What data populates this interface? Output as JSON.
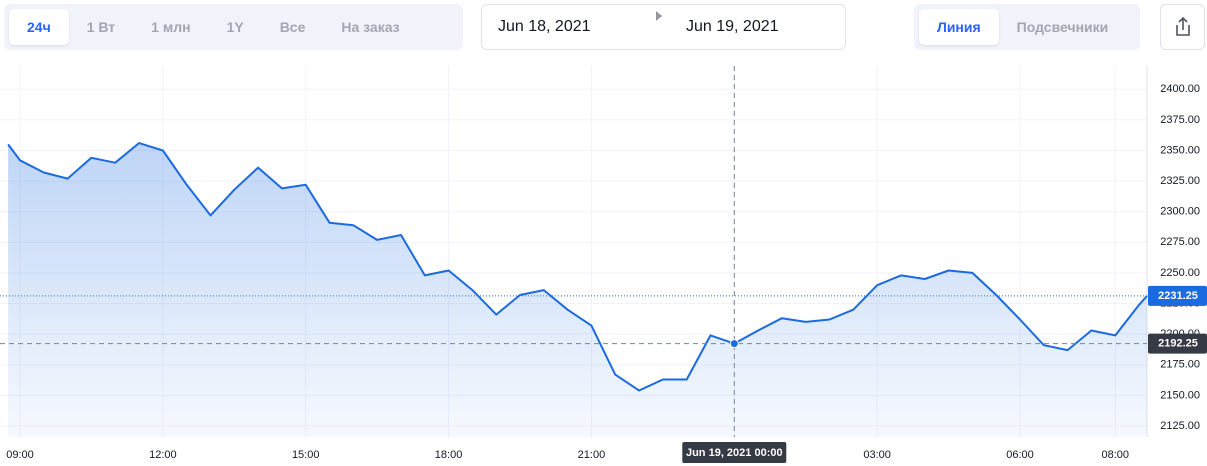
{
  "toolbar": {
    "ranges": [
      "24ч",
      "1 Вт",
      "1 млн",
      "1Y",
      "Все",
      "На заказ"
    ],
    "active_range": 0,
    "date_from": "Jun 18, 2021",
    "date_to": "Jun 19, 2021",
    "chart_types": [
      "Линия",
      "Подсвечники"
    ],
    "active_chart_type": 0
  },
  "chart_data": {
    "type": "area",
    "color": "#1a6ae0",
    "x": [
      "2021-06-18 08:45",
      "2021-06-18 09:00",
      "2021-06-18 09:30",
      "2021-06-18 10:00",
      "2021-06-18 10:30",
      "2021-06-18 11:00",
      "2021-06-18 11:30",
      "2021-06-18 12:00",
      "2021-06-18 12:30",
      "2021-06-18 13:00",
      "2021-06-18 13:30",
      "2021-06-18 14:00",
      "2021-06-18 14:30",
      "2021-06-18 15:00",
      "2021-06-18 15:30",
      "2021-06-18 16:00",
      "2021-06-18 16:30",
      "2021-06-18 17:00",
      "2021-06-18 17:30",
      "2021-06-18 18:00",
      "2021-06-18 18:30",
      "2021-06-18 19:00",
      "2021-06-18 19:30",
      "2021-06-18 20:00",
      "2021-06-18 20:30",
      "2021-06-18 21:00",
      "2021-06-18 21:30",
      "2021-06-18 22:00",
      "2021-06-18 22:30",
      "2021-06-18 23:00",
      "2021-06-18 23:30",
      "2021-06-19 00:00",
      "2021-06-19 00:30",
      "2021-06-19 01:00",
      "2021-06-19 01:30",
      "2021-06-19 02:00",
      "2021-06-19 02:30",
      "2021-06-19 03:00",
      "2021-06-19 03:30",
      "2021-06-19 04:00",
      "2021-06-19 04:30",
      "2021-06-19 05:00",
      "2021-06-19 05:30",
      "2021-06-19 06:00",
      "2021-06-19 06:30",
      "2021-06-19 07:00",
      "2021-06-19 07:30",
      "2021-06-19 08:00",
      "2021-06-19 08:30",
      "2021-06-19 08:40"
    ],
    "values": [
      2355,
      2342,
      2332,
      2327,
      2344,
      2340,
      2356,
      2350,
      2322,
      2297,
      2318,
      2336,
      2319,
      2322,
      2291,
      2289,
      2277,
      2281,
      2248,
      2252,
      2236,
      2216,
      2232,
      2236,
      2220,
      2207,
      2167,
      2154,
      2163,
      2163,
      2199,
      2192.25,
      2203,
      2213,
      2210,
      2212,
      2220,
      2240,
      2248,
      2245,
      2252,
      2250,
      2232,
      2212,
      2191,
      2187,
      2203,
      2199,
      2224,
      2231.25
    ],
    "xlim": [
      "2021-06-18 08:43",
      "2021-06-19 08:40"
    ],
    "xticks": [
      {
        "value": "2021-06-18 09:00",
        "label": "09:00"
      },
      {
        "value": "2021-06-18 12:00",
        "label": "12:00"
      },
      {
        "value": "2021-06-18 15:00",
        "label": "15:00"
      },
      {
        "value": "2021-06-18 18:00",
        "label": "18:00"
      },
      {
        "value": "2021-06-18 21:00",
        "label": "21:00"
      },
      {
        "value": "2021-06-19 00:00",
        "label": "00:00"
      },
      {
        "value": "2021-06-19 03:00",
        "label": "03:00"
      },
      {
        "value": "2021-06-19 06:00",
        "label": "06:00"
      },
      {
        "value": "2021-06-19 08:00",
        "label": "08:00"
      }
    ],
    "ylim": [
      2116,
      2419
    ],
    "yticks": [
      {
        "value": 2125,
        "label": "2125.00"
      },
      {
        "value": 2150,
        "label": "2150.00"
      },
      {
        "value": 2175,
        "label": "2175.00"
      },
      {
        "value": 2200,
        "label": "2200.00"
      },
      {
        "value": 2225,
        "label": "2225.00"
      },
      {
        "value": 2250,
        "label": "2250.00"
      },
      {
        "value": 2275,
        "label": "2275.00"
      },
      {
        "value": 2300,
        "label": "2300.00"
      },
      {
        "value": 2325,
        "label": "2325.00"
      },
      {
        "value": 2350,
        "label": "2350.00"
      },
      {
        "value": 2375,
        "label": "2375.00"
      },
      {
        "value": 2400,
        "label": "2400.00"
      }
    ],
    "grid": true,
    "last_price": 2231.25,
    "crosshair": {
      "x": "2021-06-19 00:00",
      "label": "Jun 19, 2021 00:00",
      "value": 2192.25
    }
  }
}
